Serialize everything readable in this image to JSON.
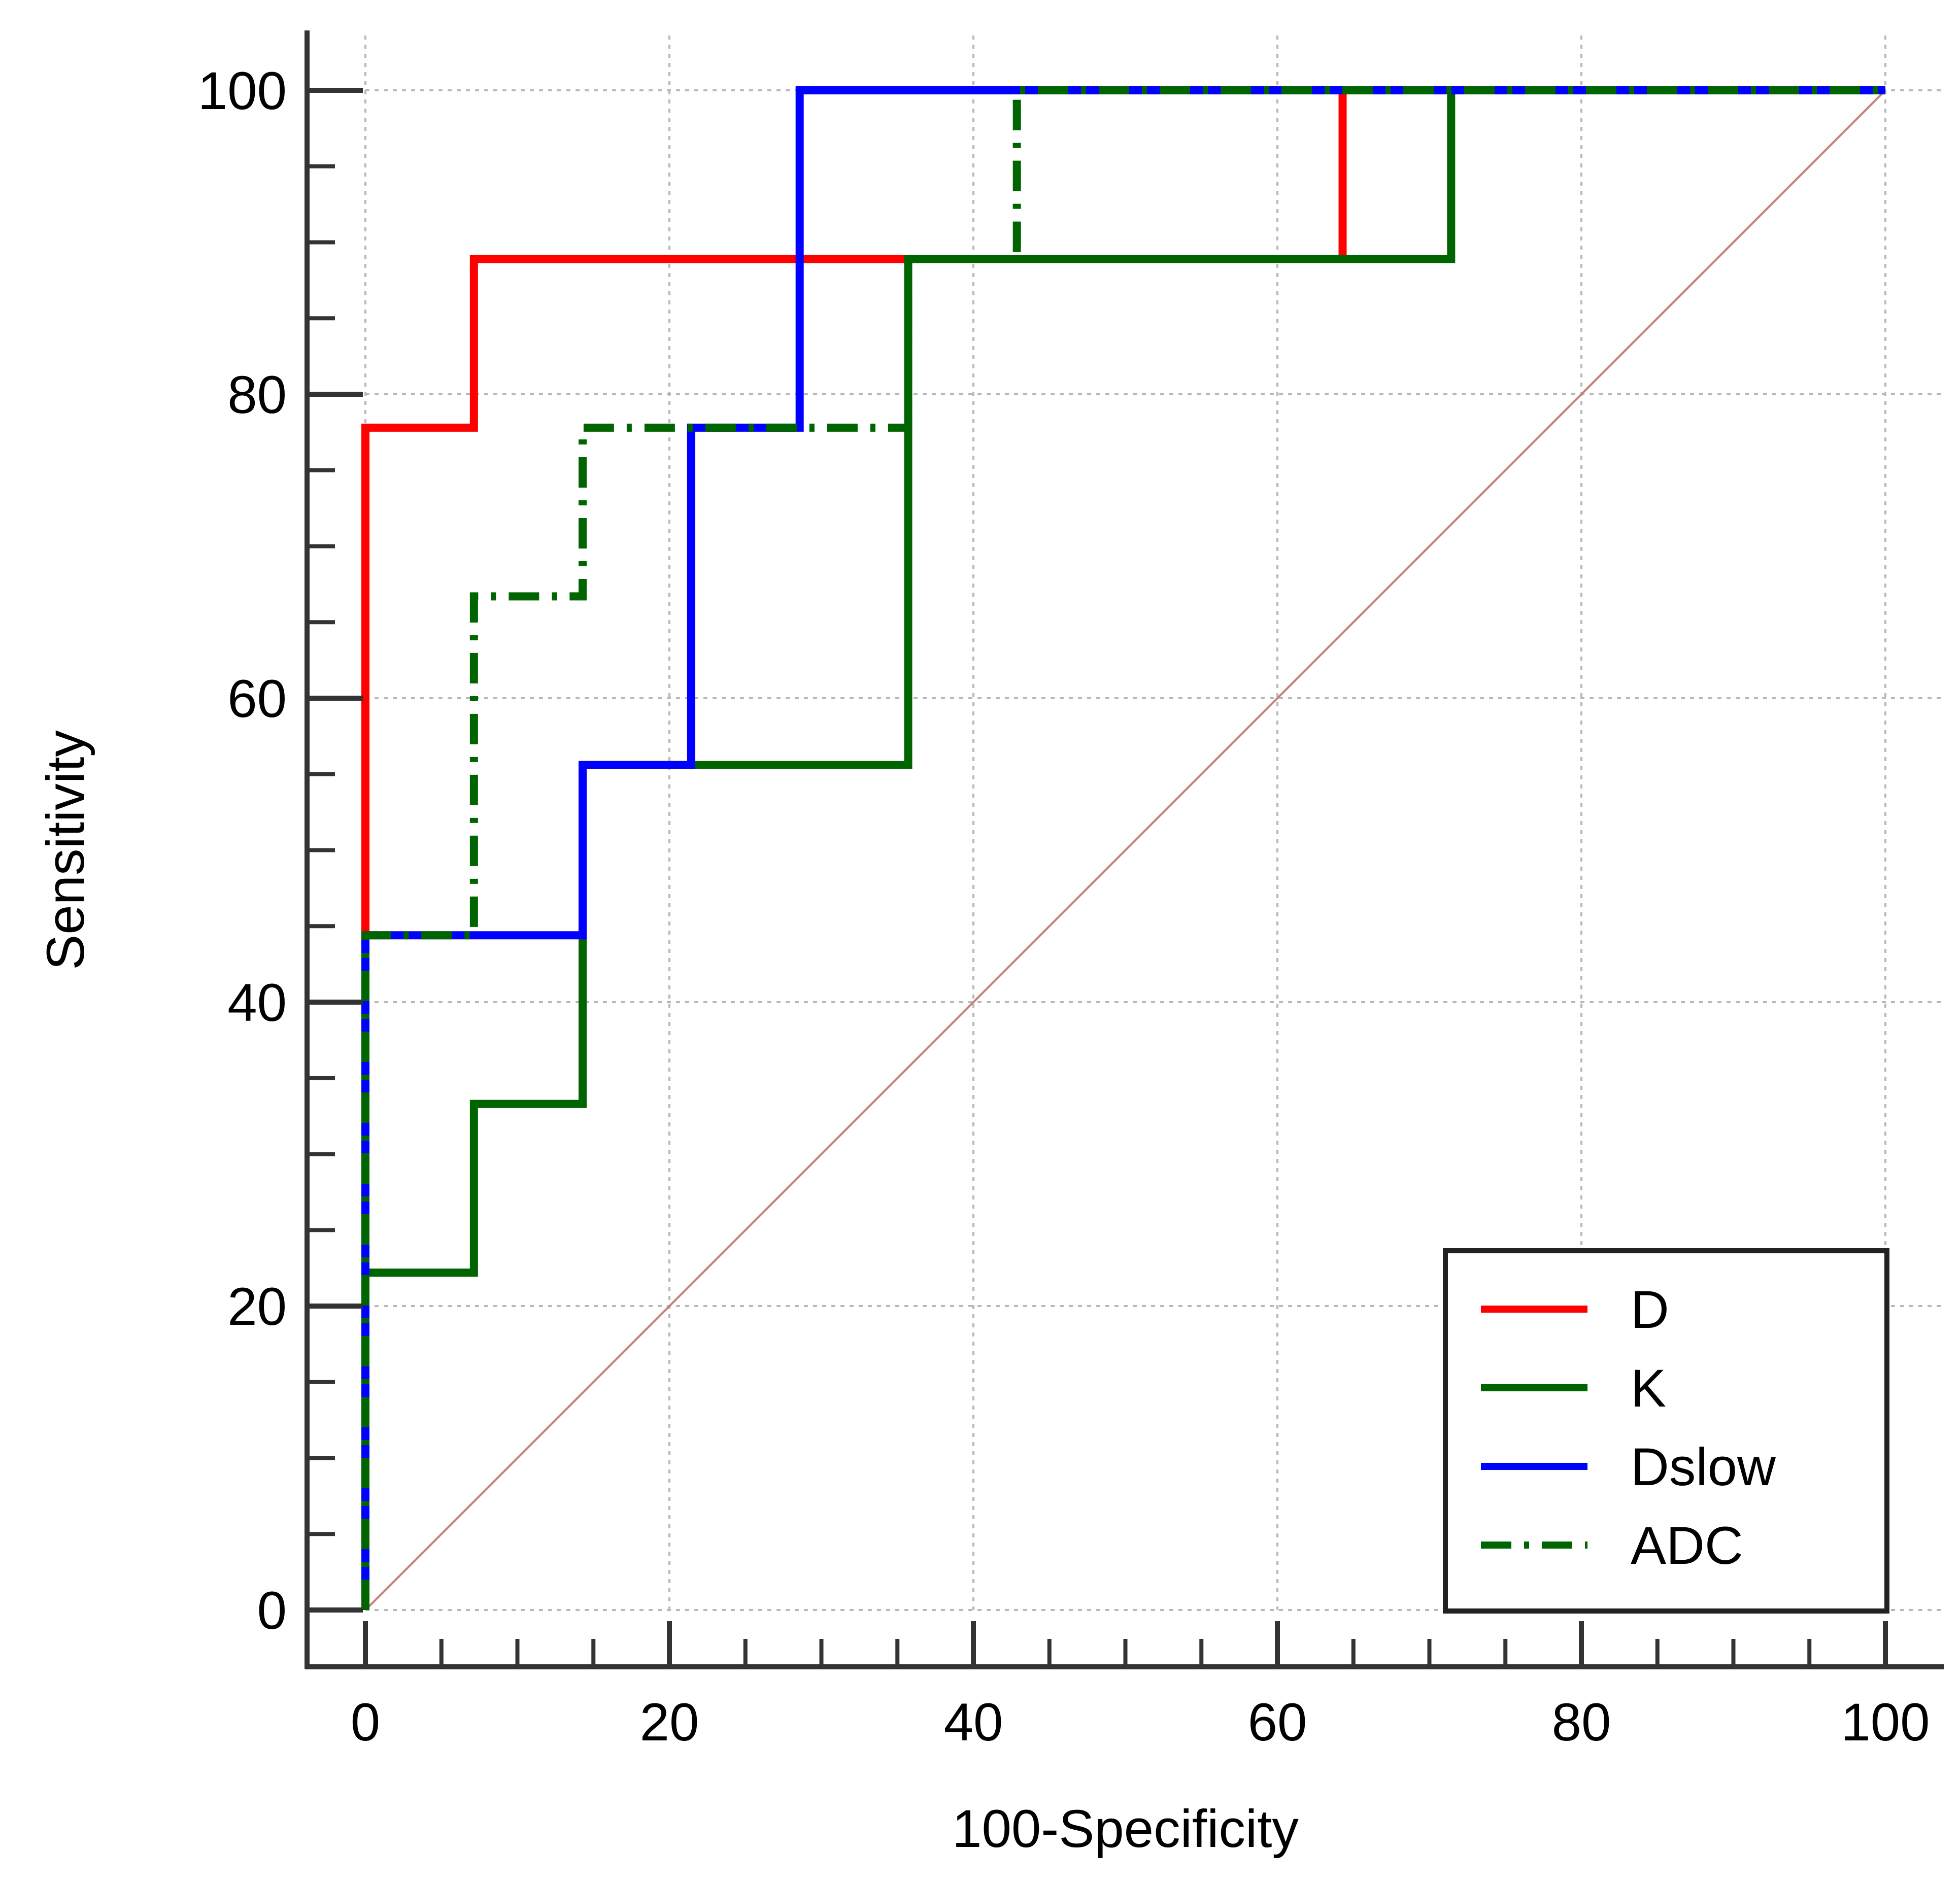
{
  "chart_data": {
    "type": "line",
    "xlabel": "100-Specificity",
    "ylabel": "Sensitivity",
    "xlim": [
      0,
      100
    ],
    "ylim": [
      0,
      100
    ],
    "xticks": [
      0,
      20,
      40,
      60,
      80,
      100
    ],
    "yticks": [
      0,
      20,
      40,
      60,
      80,
      100
    ],
    "grid": true,
    "legend": {
      "placement": "bottom-right"
    },
    "reference_line": {
      "x": [
        0,
        100
      ],
      "y": [
        0,
        100
      ],
      "color": "#c08078"
    },
    "series": [
      {
        "name": "D",
        "color": "#ff0000",
        "dash": "solid",
        "x": [
          0,
          0,
          7.14,
          7.14,
          64.29,
          64.29,
          100
        ],
        "y": [
          0,
          77.8,
          77.8,
          88.9,
          88.9,
          100,
          100
        ]
      },
      {
        "name": "K",
        "color": "#006400",
        "dash": "solid",
        "x": [
          0,
          0,
          7.14,
          7.14,
          14.29,
          14.29,
          35.71,
          35.71,
          71.43,
          71.43,
          100
        ],
        "y": [
          0,
          22.2,
          22.2,
          33.3,
          33.3,
          55.6,
          55.6,
          88.9,
          88.9,
          100,
          100
        ]
      },
      {
        "name": "Dslow",
        "color": "#0000ff",
        "dash": "solid",
        "x": [
          0,
          0,
          14.29,
          14.29,
          21.43,
          21.43,
          28.57,
          28.57,
          100
        ],
        "y": [
          0,
          44.4,
          44.4,
          55.6,
          55.6,
          77.8,
          77.8,
          100,
          100
        ]
      },
      {
        "name": "ADC",
        "color": "#006400",
        "dash": "dashdot",
        "x": [
          0,
          0,
          7.14,
          7.14,
          14.29,
          14.29,
          35.71,
          35.71,
          42.86,
          42.86,
          100
        ],
        "y": [
          0,
          44.4,
          44.4,
          66.7,
          66.7,
          77.8,
          77.8,
          88.9,
          88.9,
          100,
          100
        ]
      }
    ]
  }
}
